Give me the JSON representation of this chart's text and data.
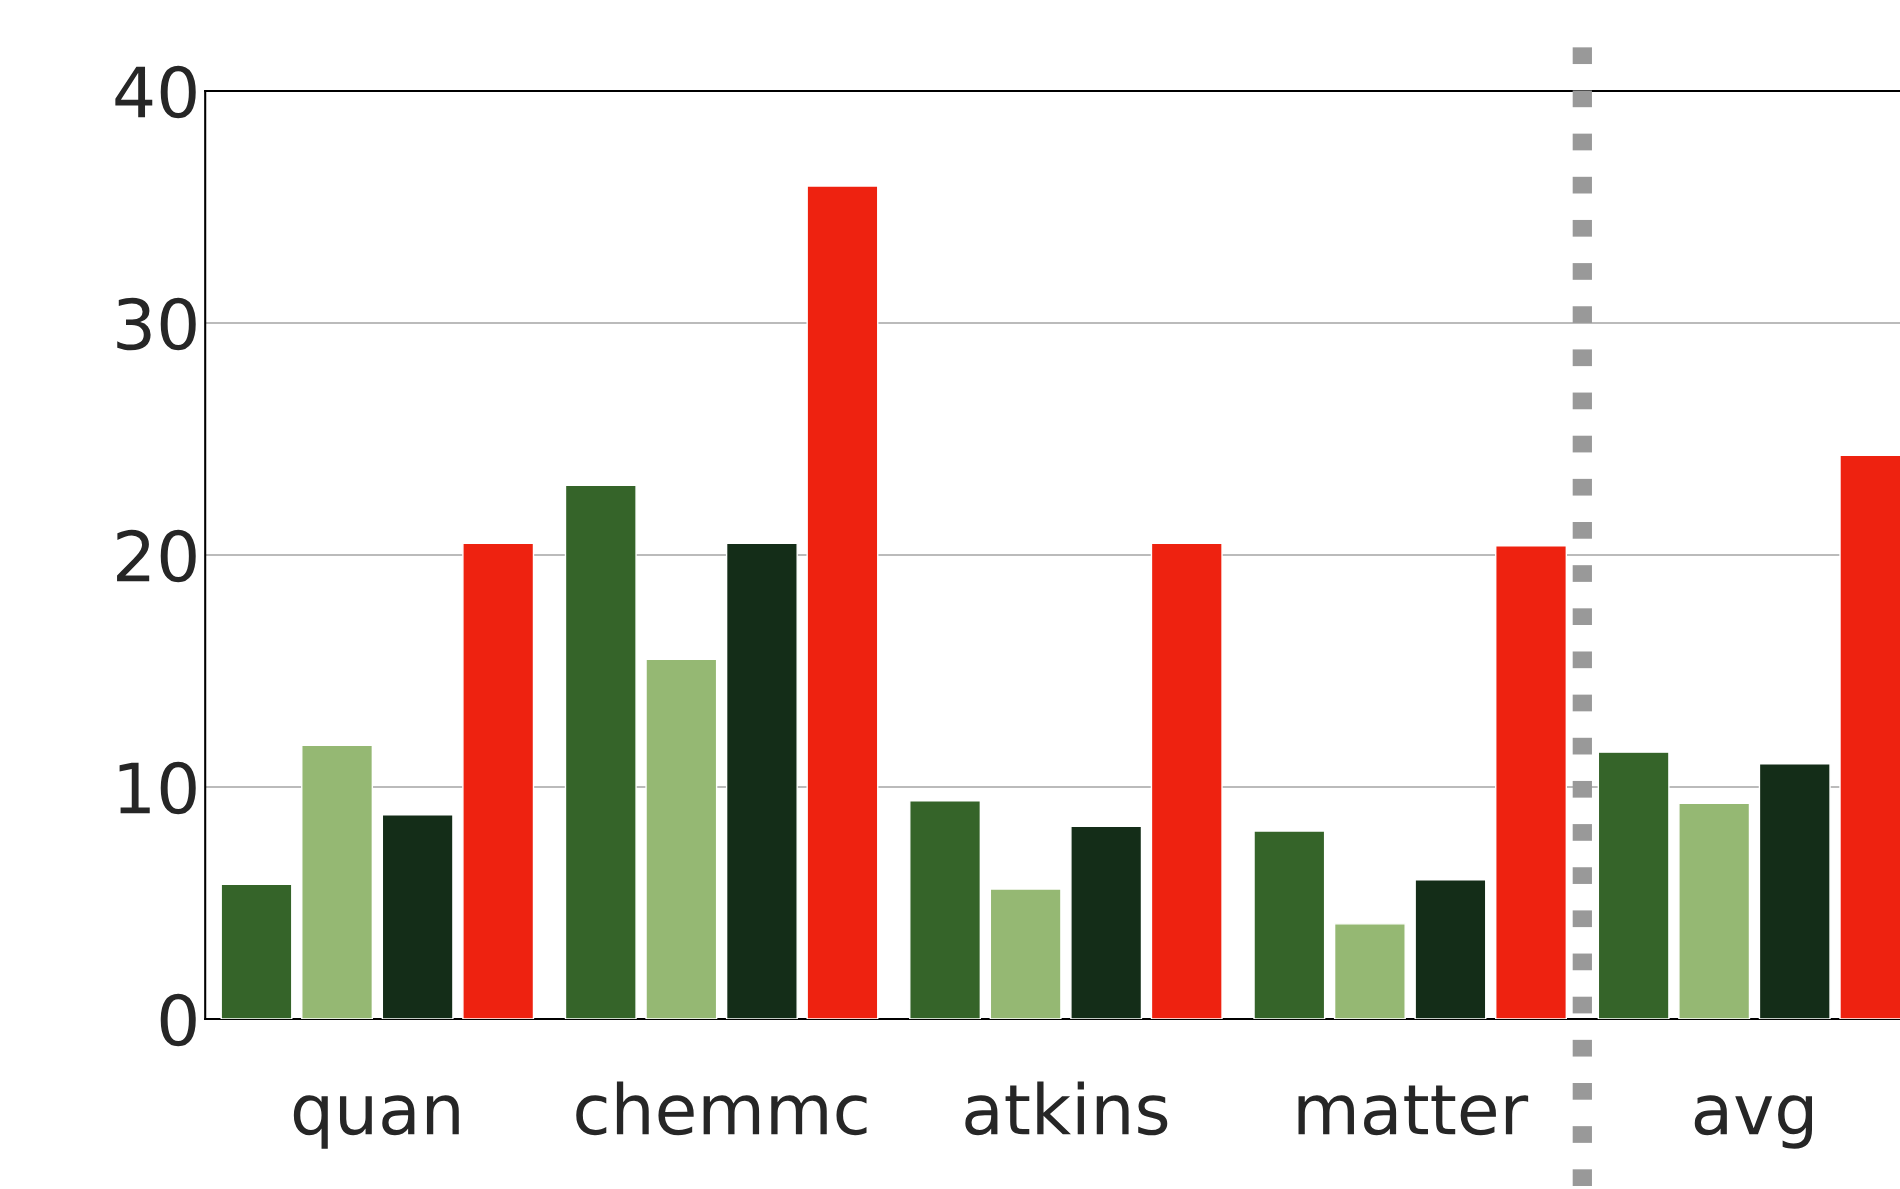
{
  "chart_data": {
    "type": "bar",
    "categories": [
      "quan",
      "chemmc",
      "atkins",
      "matter",
      "avg"
    ],
    "series": [
      {
        "color": "#356429",
        "values": [
          5.8,
          23.0,
          9.4,
          8.1,
          11.5
        ]
      },
      {
        "color": "#95b873",
        "values": [
          11.8,
          15.5,
          5.6,
          4.1,
          9.3
        ]
      },
      {
        "color": "#142d18",
        "values": [
          8.8,
          20.5,
          8.3,
          6.0,
          11.0
        ]
      },
      {
        "color": "#ee2210",
        "values": [
          20.5,
          35.9,
          20.5,
          20.4,
          24.3
        ]
      }
    ],
    "ylim": [
      0,
      40
    ],
    "yticks": [
      0,
      10,
      20,
      30,
      40
    ],
    "grid": "y",
    "legend": false
  }
}
